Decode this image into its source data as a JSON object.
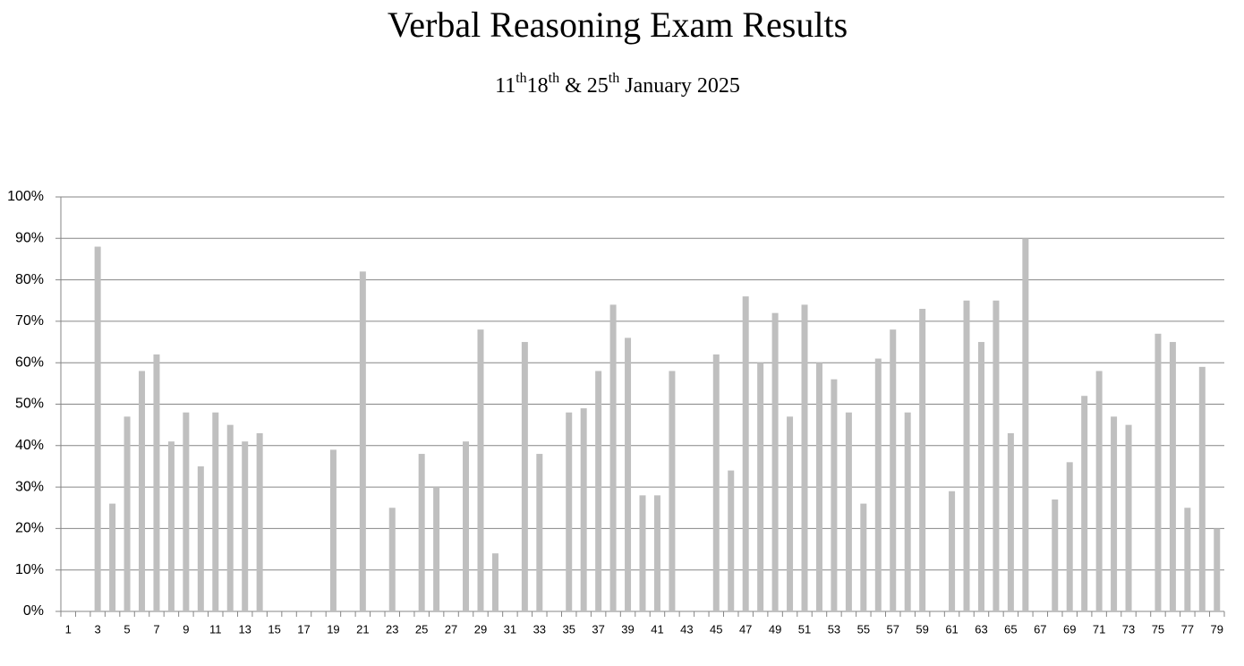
{
  "chart_data": {
    "type": "bar",
    "title": "Verbal Reasoning Exam Results",
    "subtitle": [
      "11",
      "th",
      "18",
      "th",
      " & 25",
      "th",
      " January 2025"
    ],
    "categories": [
      "1",
      null,
      "3",
      null,
      "5",
      null,
      "7",
      null,
      "9",
      null,
      "11",
      null,
      "13",
      null,
      "15",
      null,
      "17",
      null,
      "19",
      null,
      "21",
      null,
      "23",
      null,
      "25",
      null,
      "27",
      null,
      "29",
      null,
      "31",
      null,
      "33",
      null,
      "35",
      null,
      "37",
      null,
      "39",
      null,
      "41",
      null,
      "43",
      null,
      "45",
      null,
      "47",
      null,
      "49",
      null,
      "51",
      null,
      "53",
      null,
      "55",
      null,
      "57",
      null,
      "59",
      null,
      "61",
      null,
      "63",
      null,
      "65",
      null,
      "67",
      null,
      "69",
      null,
      "71",
      null,
      "73",
      null,
      "75",
      null,
      "77",
      null,
      "79"
    ],
    "values": [
      null,
      null,
      88,
      26,
      47,
      58,
      62,
      41,
      48,
      35,
      48,
      45,
      41,
      43,
      null,
      null,
      null,
      null,
      39,
      null,
      82,
      null,
      25,
      null,
      38,
      30,
      null,
      41,
      68,
      14,
      null,
      65,
      38,
      null,
      48,
      49,
      58,
      74,
      66,
      28,
      28,
      58,
      null,
      null,
      62,
      34,
      76,
      60,
      72,
      47,
      74,
      60,
      56,
      48,
      26,
      61,
      68,
      48,
      73,
      null,
      29,
      75,
      65,
      75,
      43,
      90,
      null,
      27,
      36,
      52,
      58,
      47,
      45,
      null,
      67,
      65,
      25,
      59,
      20
    ],
    "color": "#bfbfbf",
    "ylim": [
      0,
      100
    ],
    "yticks": [
      {
        "value": 0,
        "label": "0%"
      },
      {
        "value": 10,
        "label": "10%"
      },
      {
        "value": 20,
        "label": "20%"
      },
      {
        "value": 30,
        "label": "30%"
      },
      {
        "value": 40,
        "label": "40%"
      },
      {
        "value": 50,
        "label": "50%"
      },
      {
        "value": 60,
        "label": "60%"
      },
      {
        "value": 70,
        "label": "70%"
      },
      {
        "value": 80,
        "label": "80%"
      },
      {
        "value": 90,
        "label": "90%"
      },
      {
        "value": 100,
        "label": "100%"
      }
    ],
    "grid": true
  }
}
